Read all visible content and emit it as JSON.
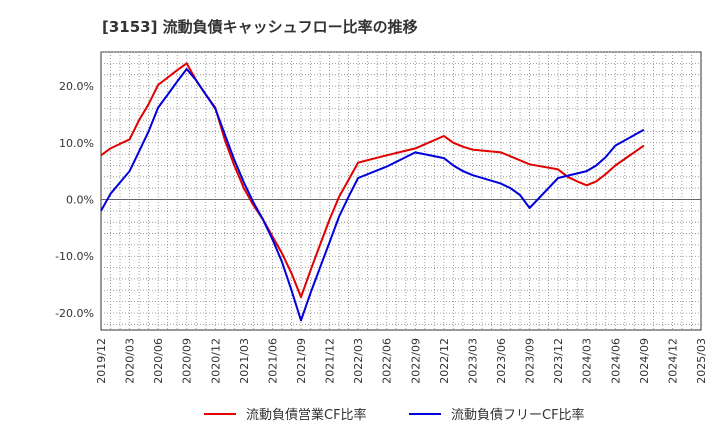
{
  "chart_data": {
    "type": "line",
    "title": "[3153]  流動負債キャッシュフロー比率の推移",
    "xlabel": "",
    "ylabel": "",
    "ylim": [
      -23,
      26
    ],
    "y_ticks": [
      -20,
      -10,
      0,
      10,
      20
    ],
    "y_tick_labels": [
      "-20.0%",
      "-10.0%",
      "0.0%",
      "10.0%",
      "20.0%"
    ],
    "x_start": "2019/12",
    "x_end": "2025/03",
    "x_tick_labels": [
      "2019/12",
      "2020/03",
      "2020/06",
      "2020/09",
      "2020/12",
      "2021/03",
      "2021/06",
      "2021/09",
      "2021/12",
      "2022/03",
      "2022/06",
      "2022/09",
      "2022/12",
      "2023/03",
      "2023/06",
      "2023/09",
      "2023/12",
      "2024/03",
      "2024/06",
      "2024/09",
      "2024/12",
      "2025/03"
    ],
    "grid": true,
    "legend_position": "bottom",
    "series": [
      {
        "name": "流動負債営業CF比率",
        "color": "#e00000",
        "points": [
          [
            "2019/12",
            7.8
          ],
          [
            "2020/01",
            9.0
          ],
          [
            "2020/02",
            9.8
          ],
          [
            "2020/03",
            10.6
          ],
          [
            "2020/04",
            14.0
          ],
          [
            "2020/05",
            16.8
          ],
          [
            "2020/06",
            20.2
          ],
          [
            "2020/07",
            21.5
          ],
          [
            "2020/08",
            22.8
          ],
          [
            "2020/09",
            24.0
          ],
          [
            "2020/10",
            21.0
          ],
          [
            "2020/11",
            18.5
          ],
          [
            "2020/12",
            16.2
          ],
          [
            "2021/01",
            10.5
          ],
          [
            "2021/02",
            6.0
          ],
          [
            "2021/03",
            2.0
          ],
          [
            "2021/04",
            -1.0
          ],
          [
            "2021/05",
            -3.5
          ],
          [
            "2021/06",
            -6.5
          ],
          [
            "2021/07",
            -9.5
          ],
          [
            "2021/08",
            -13.0
          ],
          [
            "2021/09",
            -17.2
          ],
          [
            "2021/10",
            -12.5
          ],
          [
            "2021/11",
            -8.0
          ],
          [
            "2021/12",
            -3.5
          ],
          [
            "2022/01",
            0.5
          ],
          [
            "2022/02",
            3.5
          ],
          [
            "2022/03",
            6.5
          ],
          [
            "2022/06",
            7.8
          ],
          [
            "2022/09",
            9.0
          ],
          [
            "2022/12",
            11.2
          ],
          [
            "2023/01",
            10.0
          ],
          [
            "2023/02",
            9.3
          ],
          [
            "2023/03",
            8.8
          ],
          [
            "2023/06",
            8.3
          ],
          [
            "2023/09",
            6.2
          ],
          [
            "2023/12",
            5.3
          ],
          [
            "2024/01",
            4.0
          ],
          [
            "2024/02",
            3.2
          ],
          [
            "2024/03",
            2.5
          ],
          [
            "2024/04",
            3.2
          ],
          [
            "2024/05",
            4.5
          ],
          [
            "2024/06",
            6.0
          ],
          [
            "2024/09",
            9.5
          ]
        ]
      },
      {
        "name": "流動負債フリーCF比率",
        "color": "#0000dd",
        "points": [
          [
            "2019/12",
            -2.0
          ],
          [
            "2020/01",
            1.0
          ],
          [
            "2020/02",
            3.0
          ],
          [
            "2020/03",
            5.0
          ],
          [
            "2020/04",
            8.5
          ],
          [
            "2020/05",
            12.0
          ],
          [
            "2020/06",
            16.2
          ],
          [
            "2020/07",
            18.5
          ],
          [
            "2020/08",
            20.8
          ],
          [
            "2020/09",
            23.0
          ],
          [
            "2020/10",
            21.0
          ],
          [
            "2020/11",
            18.5
          ],
          [
            "2020/12",
            16.0
          ],
          [
            "2021/01",
            11.5
          ],
          [
            "2021/02",
            7.0
          ],
          [
            "2021/03",
            3.0
          ],
          [
            "2021/04",
            -0.5
          ],
          [
            "2021/05",
            -3.5
          ],
          [
            "2021/06",
            -7.0
          ],
          [
            "2021/07",
            -11.0
          ],
          [
            "2021/08",
            -16.0
          ],
          [
            "2021/09",
            -21.3
          ],
          [
            "2021/10",
            -16.5
          ],
          [
            "2021/11",
            -12.0
          ],
          [
            "2021/12",
            -7.5
          ],
          [
            "2022/01",
            -3.0
          ],
          [
            "2022/02",
            0.5
          ],
          [
            "2022/03",
            3.8
          ],
          [
            "2022/06",
            5.8
          ],
          [
            "2022/09",
            8.3
          ],
          [
            "2022/12",
            7.3
          ],
          [
            "2023/01",
            6.0
          ],
          [
            "2023/02",
            5.0
          ],
          [
            "2023/03",
            4.3
          ],
          [
            "2023/06",
            2.8
          ],
          [
            "2023/07",
            2.0
          ],
          [
            "2023/08",
            0.8
          ],
          [
            "2023/09",
            -1.5
          ],
          [
            "2023/12",
            3.8
          ],
          [
            "2024/03",
            5.0
          ],
          [
            "2024/04",
            6.0
          ],
          [
            "2024/05",
            7.5
          ],
          [
            "2024/06",
            9.5
          ],
          [
            "2024/09",
            12.3
          ]
        ]
      }
    ]
  }
}
